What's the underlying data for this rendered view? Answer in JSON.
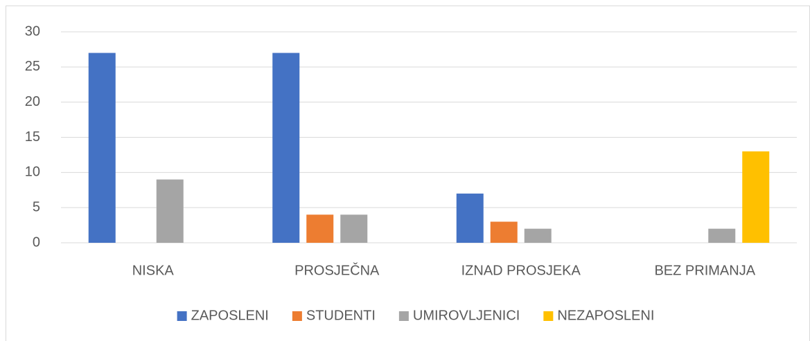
{
  "chart_data": {
    "type": "bar",
    "categories": [
      "NISKA",
      "PROSJEČNA",
      "IZNAD PROSJEKA",
      "BEZ PRIMANJA"
    ],
    "series": [
      {
        "name": "ZAPOSLENI",
        "color": "#4472c4",
        "values": [
          27,
          27,
          7,
          0
        ]
      },
      {
        "name": "STUDENTI",
        "color": "#ed7d31",
        "values": [
          0,
          4,
          3,
          0
        ]
      },
      {
        "name": "UMIROVLJENICI",
        "color": "#a5a5a5",
        "values": [
          9,
          4,
          2,
          2
        ]
      },
      {
        "name": "NEZAPOSLENI",
        "color": "#ffc000",
        "values": [
          0,
          0,
          0,
          13
        ]
      }
    ],
    "ylim": [
      0,
      30
    ],
    "yticks": [
      0,
      5,
      10,
      15,
      20,
      25,
      30
    ],
    "grid": true,
    "legend": "bottom"
  }
}
